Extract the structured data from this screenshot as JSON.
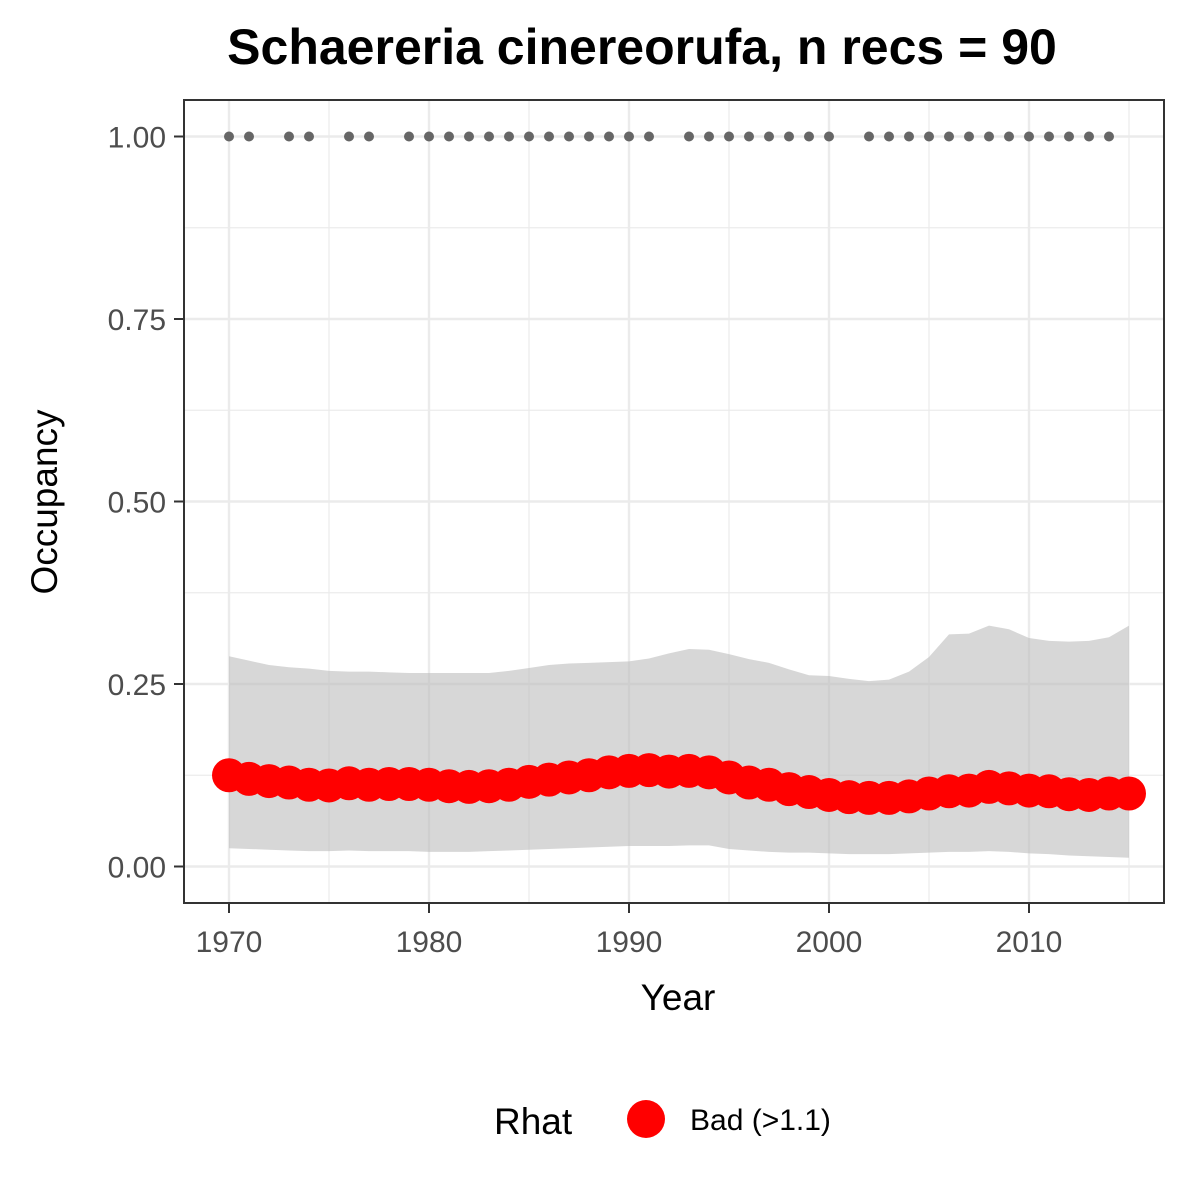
{
  "chart_data": {
    "type": "line",
    "title": "Schaereria cinereorufa, n recs = 90",
    "xlabel": "Year",
    "ylabel": "Occupancy",
    "xlim": [
      1967.75,
      2016.75
    ],
    "ylim": [
      -0.05,
      1.05
    ],
    "x_ticks": [
      1970,
      1980,
      1990,
      2000,
      2010
    ],
    "x_tick_labels": [
      "1970",
      "1980",
      "1990",
      "2000",
      "2010"
    ],
    "y_ticks": [
      0,
      0.25,
      0.5,
      0.75,
      1
    ],
    "y_tick_labels": [
      "0.00",
      "0.25",
      "0.50",
      "0.75",
      "1.00"
    ],
    "grid": true,
    "series": [
      {
        "label": "Occupancy",
        "x": [
          1970,
          1971,
          1972,
          1973,
          1974,
          1975,
          1976,
          1977,
          1978,
          1979,
          1980,
          1981,
          1982,
          1983,
          1984,
          1985,
          1986,
          1987,
          1988,
          1989,
          1990,
          1991,
          1992,
          1993,
          1994,
          1995,
          1996,
          1997,
          1998,
          1999,
          2000,
          2001,
          2002,
          2003,
          2004,
          2005,
          2006,
          2007,
          2008,
          2009,
          2010,
          2011,
          2012,
          2013,
          2014,
          2015
        ],
        "y": [
          0.125,
          0.12,
          0.117,
          0.115,
          0.112,
          0.111,
          0.114,
          0.112,
          0.113,
          0.113,
          0.112,
          0.11,
          0.109,
          0.11,
          0.112,
          0.116,
          0.119,
          0.122,
          0.125,
          0.129,
          0.131,
          0.132,
          0.13,
          0.131,
          0.129,
          0.122,
          0.115,
          0.112,
          0.106,
          0.102,
          0.098,
          0.095,
          0.094,
          0.094,
          0.096,
          0.1,
          0.103,
          0.104,
          0.109,
          0.107,
          0.104,
          0.103,
          0.099,
          0.098,
          0.1,
          0.1
        ],
        "lower": [
          0.025,
          0.024,
          0.023,
          0.022,
          0.021,
          0.021,
          0.022,
          0.021,
          0.021,
          0.021,
          0.02,
          0.02,
          0.02,
          0.021,
          0.022,
          0.023,
          0.024,
          0.025,
          0.026,
          0.027,
          0.028,
          0.028,
          0.028,
          0.029,
          0.029,
          0.024,
          0.022,
          0.02,
          0.019,
          0.019,
          0.018,
          0.017,
          0.017,
          0.017,
          0.018,
          0.019,
          0.02,
          0.02,
          0.021,
          0.02,
          0.018,
          0.017,
          0.015,
          0.014,
          0.013,
          0.012
        ],
        "upper": [
          0.288,
          0.282,
          0.276,
          0.273,
          0.271,
          0.268,
          0.267,
          0.267,
          0.266,
          0.265,
          0.265,
          0.265,
          0.265,
          0.265,
          0.268,
          0.272,
          0.276,
          0.278,
          0.279,
          0.28,
          0.281,
          0.285,
          0.292,
          0.298,
          0.297,
          0.291,
          0.284,
          0.279,
          0.27,
          0.262,
          0.261,
          0.257,
          0.254,
          0.256,
          0.267,
          0.287,
          0.318,
          0.319,
          0.33,
          0.325,
          0.313,
          0.309,
          0.308,
          0.309,
          0.314,
          0.33
        ]
      }
    ],
    "records_x": [
      1970,
      1971,
      1973,
      1974,
      1976,
      1977,
      1979,
      1980,
      1981,
      1982,
      1983,
      1984,
      1985,
      1986,
      1987,
      1988,
      1989,
      1990,
      1991,
      1993,
      1994,
      1995,
      1996,
      1997,
      1998,
      1999,
      2000,
      2002,
      2003,
      2004,
      2005,
      2006,
      2007,
      2008,
      2009,
      2010,
      2011,
      2012,
      2013,
      2014
    ],
    "records_y": 1.0,
    "legend": {
      "title": "Rhat",
      "position": "bottom",
      "entries": [
        {
          "label": "Bad (>1.1)",
          "color": "#ff0000"
        }
      ]
    },
    "colors": {
      "points": "#ff0000",
      "ribbon": "#d9d9d9",
      "records": "#666666",
      "grid": "#ebebeb",
      "panel_border": "#333333"
    }
  }
}
